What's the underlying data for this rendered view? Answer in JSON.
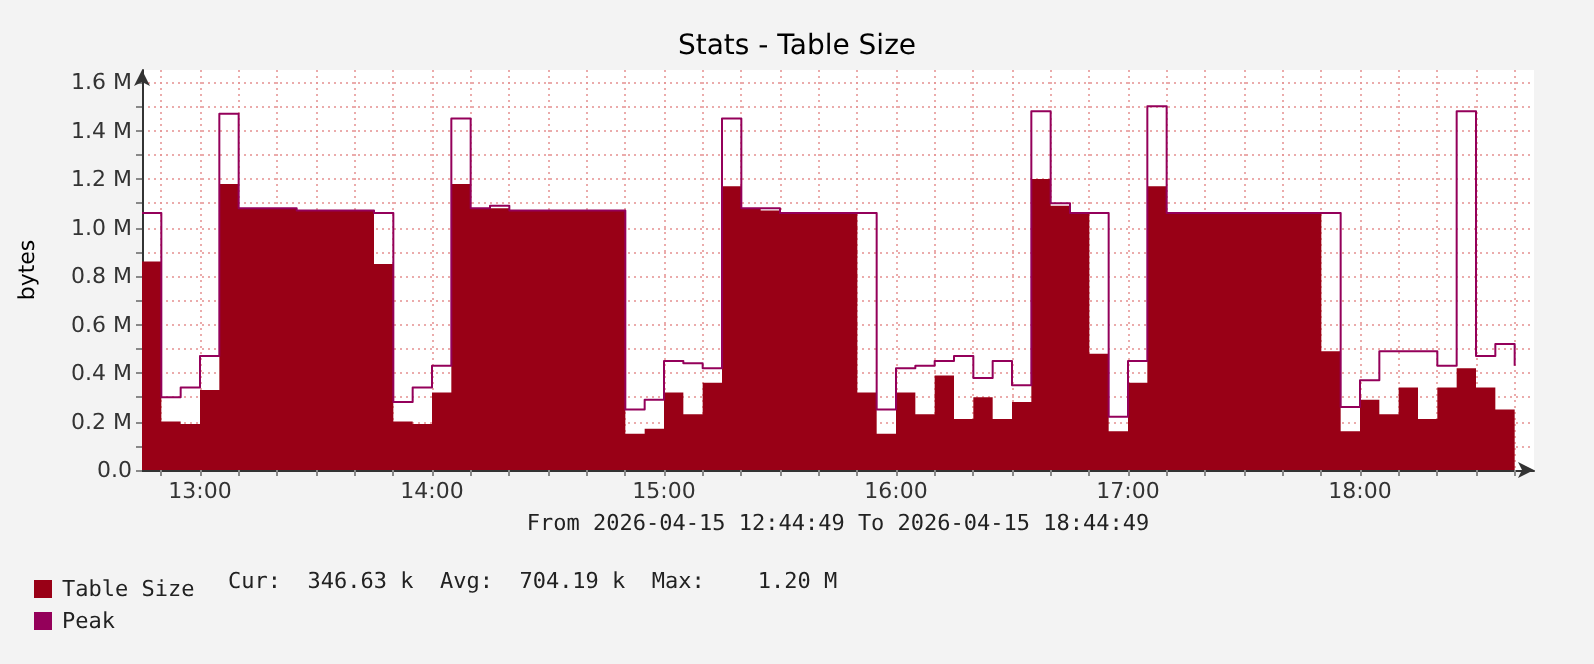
{
  "chart_data": {
    "type": "step",
    "title": "Stats - Table Size",
    "xlabel": "From 2026-04-15 12:44:49 To 2026-04-15 18:44:49",
    "ylabel": "bytes",
    "x": [
      "2026-04-15T12:45",
      "2026-04-15T12:50",
      "2026-04-15T12:55",
      "2026-04-15T13:00",
      "2026-04-15T13:05",
      "2026-04-15T13:10",
      "2026-04-15T13:15",
      "2026-04-15T13:20",
      "2026-04-15T13:25",
      "2026-04-15T13:30",
      "2026-04-15T13:35",
      "2026-04-15T13:40",
      "2026-04-15T13:45",
      "2026-04-15T13:50",
      "2026-04-15T13:55",
      "2026-04-15T14:00",
      "2026-04-15T14:05",
      "2026-04-15T14:10",
      "2026-04-15T14:15",
      "2026-04-15T14:20",
      "2026-04-15T14:25",
      "2026-04-15T14:30",
      "2026-04-15T14:35",
      "2026-04-15T14:40",
      "2026-04-15T14:45",
      "2026-04-15T14:50",
      "2026-04-15T14:55",
      "2026-04-15T15:00",
      "2026-04-15T15:05",
      "2026-04-15T15:10",
      "2026-04-15T15:15",
      "2026-04-15T15:20",
      "2026-04-15T15:25",
      "2026-04-15T15:30",
      "2026-04-15T15:35",
      "2026-04-15T15:40",
      "2026-04-15T15:45",
      "2026-04-15T15:50",
      "2026-04-15T15:55",
      "2026-04-15T16:00",
      "2026-04-15T16:05",
      "2026-04-15T16:10",
      "2026-04-15T16:15",
      "2026-04-15T16:20",
      "2026-04-15T16:25",
      "2026-04-15T16:30",
      "2026-04-15T16:35",
      "2026-04-15T16:40",
      "2026-04-15T16:45",
      "2026-04-15T16:50",
      "2026-04-15T16:55",
      "2026-04-15T17:00",
      "2026-04-15T17:05",
      "2026-04-15T17:10",
      "2026-04-15T17:15",
      "2026-04-15T17:20",
      "2026-04-15T17:25",
      "2026-04-15T17:30",
      "2026-04-15T17:35",
      "2026-04-15T17:40",
      "2026-04-15T17:45",
      "2026-04-15T17:50",
      "2026-04-15T17:55",
      "2026-04-15T18:00",
      "2026-04-15T18:05",
      "2026-04-15T18:10",
      "2026-04-15T18:15",
      "2026-04-15T18:20",
      "2026-04-15T18:25",
      "2026-04-15T18:30",
      "2026-04-15T18:35",
      "2026-04-15T18:40"
    ],
    "series": [
      {
        "name": "Table Size",
        "type": "area",
        "color": "#990016",
        "values": [
          860000,
          200000,
          190000,
          330000,
          1180000,
          1080000,
          1080000,
          1080000,
          1070000,
          1070000,
          1070000,
          1070000,
          850000,
          200000,
          190000,
          320000,
          1180000,
          1080000,
          1080000,
          1070000,
          1070000,
          1070000,
          1070000,
          1070000,
          1070000,
          150000,
          170000,
          320000,
          230000,
          360000,
          1170000,
          1080000,
          1070000,
          1060000,
          1060000,
          1060000,
          1060000,
          320000,
          150000,
          320000,
          230000,
          390000,
          210000,
          300000,
          210000,
          280000,
          1200000,
          1090000,
          1060000,
          480000,
          160000,
          360000,
          1170000,
          1060000,
          1060000,
          1060000,
          1060000,
          1060000,
          1060000,
          1060000,
          1060000,
          490000,
          160000,
          290000,
          230000,
          340000,
          210000,
          340000,
          420000,
          340000,
          250000,
          340000
        ]
      },
      {
        "name": "Peak",
        "type": "step",
        "color": "#94005a",
        "values": [
          1060000,
          300000,
          340000,
          470000,
          1470000,
          1080000,
          1080000,
          1080000,
          1070000,
          1070000,
          1070000,
          1070000,
          1060000,
          280000,
          340000,
          430000,
          1450000,
          1080000,
          1090000,
          1070000,
          1070000,
          1070000,
          1070000,
          1070000,
          1070000,
          250000,
          290000,
          450000,
          440000,
          420000,
          1450000,
          1080000,
          1080000,
          1060000,
          1060000,
          1060000,
          1060000,
          1060000,
          250000,
          420000,
          430000,
          450000,
          470000,
          380000,
          450000,
          350000,
          1480000,
          1100000,
          1060000,
          1060000,
          220000,
          450000,
          1500000,
          1060000,
          1060000,
          1060000,
          1060000,
          1060000,
          1060000,
          1060000,
          1060000,
          1060000,
          260000,
          370000,
          490000,
          490000,
          490000,
          430000,
          1480000,
          470000,
          520000,
          430000
        ]
      }
    ],
    "xlim": [
      "2026-04-15T12:45",
      "2026-04-15T18:45"
    ],
    "xticks": [
      {
        "value": "2026-04-15T12:50",
        "label": null
      },
      {
        "value": "2026-04-15T13:00",
        "label": "13:00"
      },
      {
        "value": "2026-04-15T13:10",
        "label": null
      },
      {
        "value": "2026-04-15T13:20",
        "label": null
      },
      {
        "value": "2026-04-15T13:30",
        "label": null
      },
      {
        "value": "2026-04-15T13:40",
        "label": null
      },
      {
        "value": "2026-04-15T13:50",
        "label": null
      },
      {
        "value": "2026-04-15T14:00",
        "label": "14:00"
      },
      {
        "value": "2026-04-15T14:10",
        "label": null
      },
      {
        "value": "2026-04-15T14:20",
        "label": null
      },
      {
        "value": "2026-04-15T14:30",
        "label": null
      },
      {
        "value": "2026-04-15T14:40",
        "label": null
      },
      {
        "value": "2026-04-15T14:50",
        "label": null
      },
      {
        "value": "2026-04-15T15:00",
        "label": "15:00"
      },
      {
        "value": "2026-04-15T15:10",
        "label": null
      },
      {
        "value": "2026-04-15T15:20",
        "label": null
      },
      {
        "value": "2026-04-15T15:30",
        "label": null
      },
      {
        "value": "2026-04-15T15:40",
        "label": null
      },
      {
        "value": "2026-04-15T15:50",
        "label": null
      },
      {
        "value": "2026-04-15T16:00",
        "label": "16:00"
      },
      {
        "value": "2026-04-15T16:10",
        "label": null
      },
      {
        "value": "2026-04-15T16:20",
        "label": null
      },
      {
        "value": "2026-04-15T16:30",
        "label": null
      },
      {
        "value": "2026-04-15T16:40",
        "label": null
      },
      {
        "value": "2026-04-15T16:50",
        "label": null
      },
      {
        "value": "2026-04-15T17:00",
        "label": "17:00"
      },
      {
        "value": "2026-04-15T17:10",
        "label": null
      },
      {
        "value": "2026-04-15T17:20",
        "label": null
      },
      {
        "value": "2026-04-15T17:30",
        "label": null
      },
      {
        "value": "2026-04-15T17:40",
        "label": null
      },
      {
        "value": "2026-04-15T17:50",
        "label": null
      },
      {
        "value": "2026-04-15T18:00",
        "label": "18:00"
      },
      {
        "value": "2026-04-15T18:10",
        "label": null
      },
      {
        "value": "2026-04-15T18:20",
        "label": null
      },
      {
        "value": "2026-04-15T18:30",
        "label": null
      },
      {
        "value": "2026-04-15T18:40",
        "label": null
      }
    ],
    "ylim": [
      0,
      1650000
    ],
    "yticks": [
      {
        "value": 0,
        "label": "0.0"
      },
      {
        "value": 100000,
        "label": null
      },
      {
        "value": 200000,
        "label": "0.2 M"
      },
      {
        "value": 300000,
        "label": null
      },
      {
        "value": 400000,
        "label": "0.4 M"
      },
      {
        "value": 500000,
        "label": null
      },
      {
        "value": 600000,
        "label": "0.6 M"
      },
      {
        "value": 700000,
        "label": null
      },
      {
        "value": 800000,
        "label": "0.8 M"
      },
      {
        "value": 900000,
        "label": null
      },
      {
        "value": 1000000,
        "label": "1.0 M"
      },
      {
        "value": 1100000,
        "label": null
      },
      {
        "value": 1200000,
        "label": "1.2 M"
      },
      {
        "value": 1300000,
        "label": null
      },
      {
        "value": 1400000,
        "label": "1.4 M"
      },
      {
        "value": 1500000,
        "label": null
      },
      {
        "value": 1600000,
        "label": "1.6 M"
      }
    ],
    "grid": true,
    "legend": "bottom left",
    "marker": "none",
    "annotations": [
      "Cur:  346.63 k  Avg:  704.19 k  Max:    1.20 M"
    ]
  }
}
